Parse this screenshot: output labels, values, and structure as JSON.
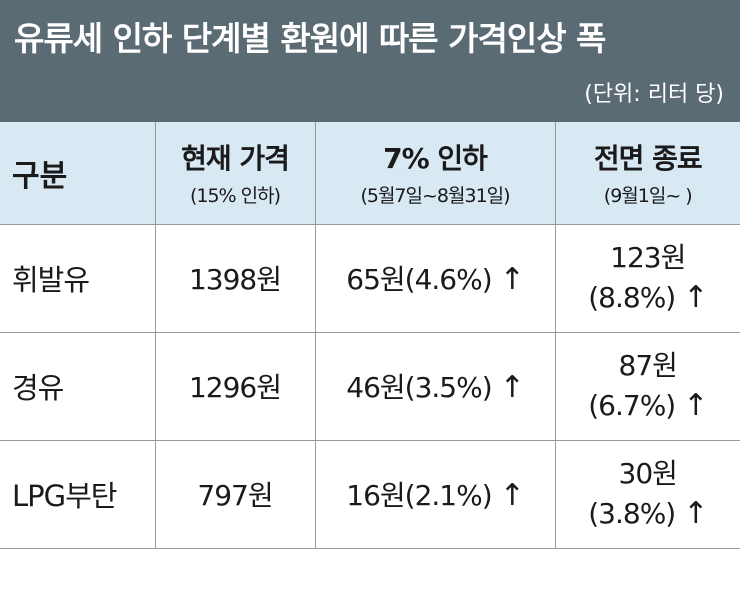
{
  "title": "유류세 인하 단계별 환원에 따른 가격인상 폭",
  "unit": "(단위: 리터 당)",
  "header": {
    "category": "구분",
    "columns": [
      {
        "main": "현재 가격",
        "sub": "(15% 인하)"
      },
      {
        "main": "7% 인하",
        "sub": "(5월7일~8월31일)"
      },
      {
        "main": "전면 종료",
        "sub": "(9월1일~ )"
      }
    ]
  },
  "rows": [
    {
      "label": "휘발유",
      "current": "1398원",
      "cut7": "65원(4.6%)",
      "end_line1": "123원",
      "end_line2": "(8.8%)"
    },
    {
      "label": "경유",
      "current": "1296원",
      "cut7": "46원(3.5%)",
      "end_line1": "87원",
      "end_line2": "(6.7%)"
    },
    {
      "label": "LPG부탄",
      "current": "797원",
      "cut7": "16원(2.1%)",
      "end_line1": "30원",
      "end_line2": "(3.8%)"
    }
  ],
  "arrow": "↑"
}
